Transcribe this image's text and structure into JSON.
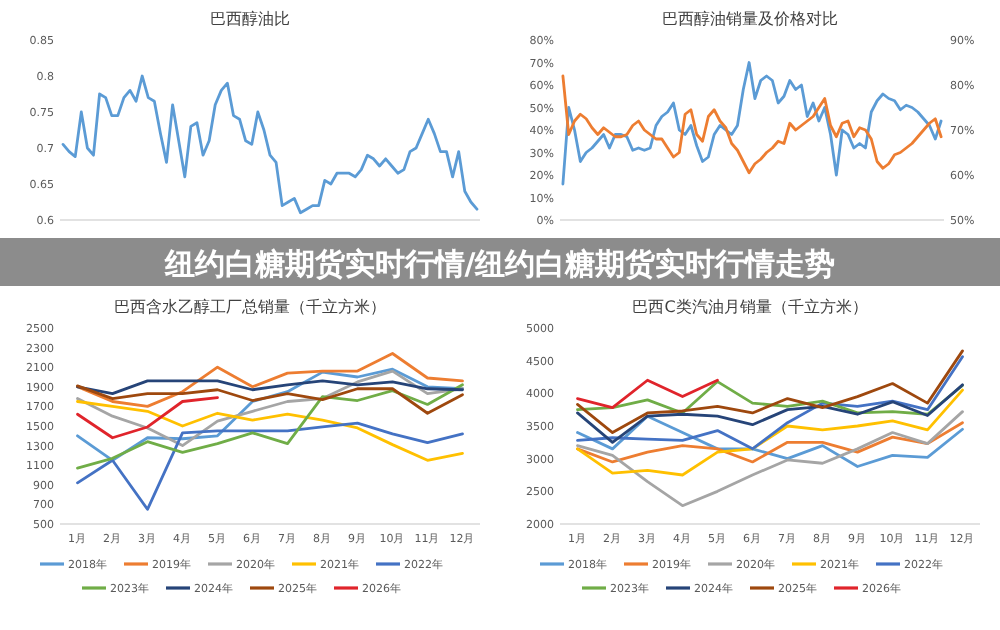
{
  "chart_data": [
    {
      "type": "line",
      "title": "巴西醇油比",
      "categories": [
        null,
        null,
        null,
        null,
        null,
        null,
        null,
        null,
        null,
        null,
        null,
        null,
        null,
        null,
        null,
        null,
        null,
        null,
        null,
        null,
        null,
        null,
        null,
        null,
        null,
        null,
        null,
        null,
        null,
        null,
        null,
        null,
        null,
        null,
        null,
        null,
        null,
        null,
        null,
        null,
        null,
        null,
        null,
        null,
        null,
        null,
        null,
        null,
        null,
        null,
        null,
        null,
        null,
        null,
        null,
        null,
        null,
        null,
        null,
        null,
        null,
        null,
        null,
        null,
        null,
        null,
        null,
        null,
        null
      ],
      "ylim": [
        0.6,
        0.85
      ],
      "yticks": [
        0.6,
        0.65,
        0.7,
        0.75,
        0.8,
        0.85
      ],
      "series": [
        {
          "color": "#5b9bd5",
          "values": [
            0.705,
            0.695,
            0.688,
            0.75,
            0.7,
            0.69,
            0.775,
            0.77,
            0.745,
            0.745,
            0.77,
            0.78,
            0.765,
            0.8,
            0.77,
            0.765,
            0.72,
            0.68,
            0.76,
            0.71,
            0.66,
            0.73,
            0.735,
            0.69,
            0.71,
            0.76,
            0.78,
            0.79,
            0.745,
            0.74,
            0.71,
            0.705,
            0.75,
            0.725,
            0.69,
            0.68,
            0.62,
            0.625,
            0.63,
            0.61,
            0.615,
            0.62,
            0.62,
            0.655,
            0.65,
            0.665,
            0.665,
            0.665,
            0.66,
            0.67,
            0.69,
            0.685,
            0.675,
            0.685,
            0.675,
            0.665,
            0.67,
            0.695,
            0.7,
            0.72,
            0.74,
            0.72,
            0.695,
            0.695,
            0.66,
            0.695,
            0.64,
            0.625,
            0.615
          ]
        }
      ]
    },
    {
      "type": "line",
      "title": "巴西醇油销量及价格对比",
      "categories": [
        null,
        null,
        null,
        null,
        null,
        null,
        null,
        null,
        null,
        null,
        null,
        null,
        null,
        null,
        null,
        null,
        null,
        null,
        null,
        null,
        null,
        null,
        null,
        null,
        null,
        null,
        null,
        null,
        null,
        null,
        null,
        null,
        null,
        null,
        null,
        null,
        null,
        null,
        null,
        null,
        null,
        null,
        null,
        null,
        null,
        null,
        null,
        null,
        null,
        null,
        null,
        null,
        null,
        null,
        null,
        null,
        null,
        null,
        null,
        null,
        null,
        null,
        null,
        null,
        null,
        null
      ],
      "ylim": [
        0,
        80
      ],
      "yticks": [
        {
          "value": 0,
          "label": "0%"
        },
        {
          "value": 10,
          "label": "10%"
        },
        {
          "value": 20,
          "label": "20%"
        },
        {
          "value": 30,
          "label": "30%"
        },
        {
          "value": 40,
          "label": "40%"
        },
        {
          "value": 50,
          "label": "50%"
        },
        {
          "value": 60,
          "label": "60%"
        },
        {
          "value": 70,
          "label": "70%"
        },
        {
          "value": 80,
          "label": "80%"
        }
      ],
      "y2lim": [
        50,
        90
      ],
      "y2ticks": [
        {
          "value": 50,
          "label": "50%"
        },
        {
          "value": 60,
          "label": "60%"
        },
        {
          "value": 70,
          "label": "70%"
        },
        {
          "value": 80,
          "label": "80%"
        },
        {
          "value": 90,
          "label": "90%"
        }
      ],
      "series": [
        {
          "color": "#5b9bd5",
          "values": [
            16,
            50,
            40,
            26,
            30,
            32,
            35,
            38,
            32,
            38,
            38,
            37,
            31,
            32,
            31,
            32,
            42,
            46,
            48,
            52,
            40,
            38,
            42,
            33,
            26,
            28,
            38,
            42,
            40,
            38,
            42,
            58,
            70,
            54,
            62,
            64,
            62,
            52,
            55,
            62,
            58,
            60,
            46,
            52,
            44,
            50,
            38,
            20,
            40,
            38,
            32,
            34,
            32,
            48,
            53,
            56,
            54,
            53,
            49,
            51,
            50,
            48,
            45,
            42,
            36,
            44
          ]
        },
        {
          "color": "#ed7d31",
          "axis": "y2",
          "values": [
            82,
            69,
            72,
            73.5,
            72.5,
            70.5,
            69,
            70.5,
            69.5,
            68.5,
            68.5,
            69,
            71,
            72,
            70,
            69,
            68,
            68,
            66,
            64,
            65,
            73.5,
            74.5,
            69,
            67.5,
            73,
            74.5,
            72,
            70.5,
            67,
            65.5,
            63,
            60.5,
            62.5,
            63.5,
            65,
            66,
            67.5,
            67,
            71.5,
            70,
            71,
            72,
            73,
            75,
            77,
            71,
            68.5,
            71.5,
            72,
            68.5,
            70.5,
            70,
            68,
            63,
            61.5,
            62.5,
            64.5,
            65,
            66,
            67,
            68.5,
            70,
            71.5,
            72.5,
            68.5
          ]
        }
      ]
    },
    {
      "type": "other",
      "title": "纽约白糖期货实时行情/纽约白糖期货实时行情走势"
    },
    {
      "type": "line",
      "title": "巴西含水乙醇工厂总销量（千立方米）",
      "categories": [
        "1月",
        "2月",
        "3月",
        "4月",
        "5月",
        "6月",
        "7月",
        "8月",
        "9月",
        "10月",
        "11月",
        "12月"
      ],
      "ylim": [
        500,
        2500
      ],
      "yticks": [
        500,
        700,
        900,
        1100,
        1300,
        1500,
        1700,
        1900,
        2100,
        2300,
        2500
      ],
      "legend": "bottom",
      "series": [
        {
          "name": "2018年",
          "color": "#5b9bd5",
          "values": [
            1400,
            1150,
            1380,
            1370,
            1400,
            1750,
            1850,
            2050,
            2000,
            2080,
            1900,
            1880
          ]
        },
        {
          "name": "2019年",
          "color": "#ed7d31",
          "values": [
            1900,
            1750,
            1700,
            1850,
            2100,
            1900,
            2040,
            2060,
            2060,
            2240,
            1990,
            1960
          ]
        },
        {
          "name": "2020年",
          "color": "#a5a5a5",
          "values": [
            1780,
            1600,
            1480,
            1300,
            1550,
            1650,
            1750,
            1780,
            1950,
            2060,
            1830,
            1880
          ]
        },
        {
          "name": "2021年",
          "color": "#ffc000",
          "values": [
            1750,
            1700,
            1650,
            1500,
            1630,
            1560,
            1620,
            1560,
            1480,
            1310,
            1150,
            1220
          ]
        },
        {
          "name": "2022年",
          "color": "#4472c4",
          "values": [
            920,
            1150,
            650,
            1430,
            1450,
            1450,
            1450,
            1490,
            1530,
            1420,
            1330,
            1420
          ]
        },
        {
          "name": "2023年",
          "color": "#70ad47",
          "values": [
            1070,
            1170,
            1340,
            1230,
            1320,
            1430,
            1320,
            1800,
            1760,
            1860,
            1720,
            1920
          ]
        },
        {
          "name": "2024年",
          "color": "#264478",
          "values": [
            1900,
            1830,
            1960,
            1960,
            1960,
            1870,
            1920,
            1960,
            1920,
            1950,
            1880,
            1870
          ]
        },
        {
          "name": "2025年",
          "color": "#9e480e",
          "values": [
            1910,
            1780,
            1830,
            1830,
            1870,
            1760,
            1830,
            1770,
            1880,
            1880,
            1630,
            1820
          ]
        },
        {
          "name": "2026年",
          "color": "#e0242b",
          "values": [
            1620,
            1380,
            1490,
            1750,
            1790,
            null,
            null,
            null,
            null,
            null,
            null,
            null
          ]
        }
      ]
    },
    {
      "type": "line",
      "title": "巴西C类汽油月销量（千立方米）",
      "categories": [
        "1月",
        "2月",
        "3月",
        "4月",
        "5月",
        "6月",
        "7月",
        "8月",
        "9月",
        "10月",
        "11月",
        "12月"
      ],
      "ylim": [
        2000,
        5000
      ],
      "yticks": [
        2000,
        2500,
        3000,
        3500,
        4000,
        4500,
        5000
      ],
      "legend": "bottom",
      "series": [
        {
          "name": "2018年",
          "color": "#5b9bd5",
          "values": [
            3400,
            3150,
            3650,
            3400,
            3150,
            3150,
            3000,
            3200,
            2880,
            3050,
            3020,
            3450
          ]
        },
        {
          "name": "2019年",
          "color": "#ed7d31",
          "values": [
            3150,
            2950,
            3100,
            3200,
            3150,
            2950,
            3250,
            3250,
            3100,
            3330,
            3230,
            3550
          ]
        },
        {
          "name": "2020年",
          "color": "#a5a5a5",
          "values": [
            3200,
            3050,
            2650,
            2280,
            2500,
            2750,
            2980,
            2930,
            3150,
            3400,
            3230,
            3720
          ]
        },
        {
          "name": "2021年",
          "color": "#ffc000",
          "values": [
            3150,
            2780,
            2820,
            2750,
            3100,
            3150,
            3500,
            3440,
            3500,
            3580,
            3440,
            4050
          ]
        },
        {
          "name": "2022年",
          "color": "#4472c4",
          "values": [
            3280,
            3320,
            3300,
            3280,
            3430,
            3150,
            3550,
            3850,
            3800,
            3880,
            3750,
            4560
          ]
        },
        {
          "name": "2023年",
          "color": "#70ad47",
          "values": [
            3750,
            3780,
            3900,
            3700,
            4180,
            3850,
            3800,
            3880,
            3700,
            3720,
            3680,
            4120
          ]
        },
        {
          "name": "2024年",
          "color": "#264478",
          "values": [
            3700,
            3250,
            3650,
            3680,
            3650,
            3520,
            3750,
            3800,
            3680,
            3870,
            3660,
            4130
          ]
        },
        {
          "name": "2025年",
          "color": "#9e480e",
          "values": [
            3830,
            3400,
            3700,
            3730,
            3800,
            3700,
            3920,
            3780,
            3950,
            4150,
            3850,
            4650
          ]
        },
        {
          "name": "2026年",
          "color": "#e0242b",
          "values": [
            3920,
            3780,
            4200,
            3950,
            4200,
            null,
            null,
            null,
            null,
            null,
            null,
            null
          ]
        }
      ]
    }
  ]
}
